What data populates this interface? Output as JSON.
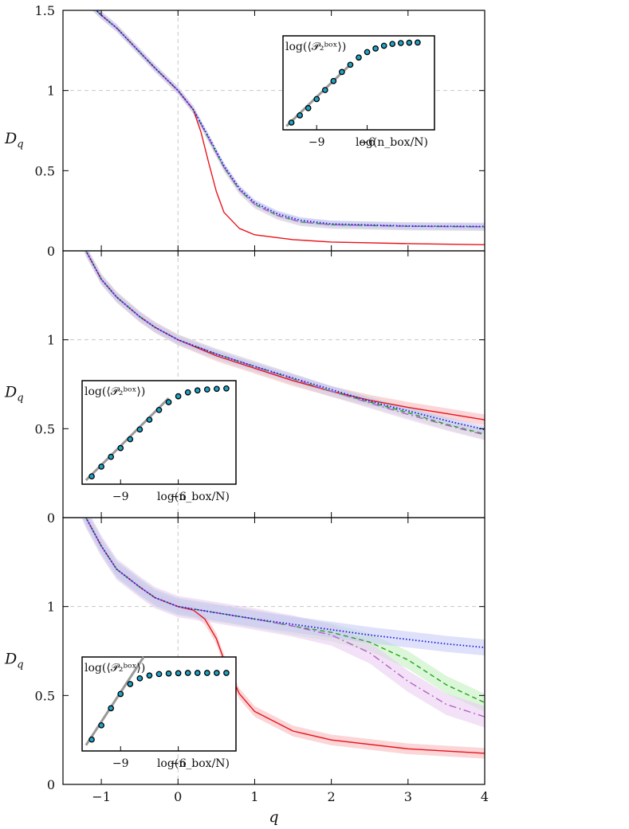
{
  "chart_data": {
    "type": "line",
    "xlabel": "q",
    "ylabel": "D_q",
    "xlim": [
      -1.5,
      4
    ],
    "x_ticks": [
      "−1",
      "0",
      "1",
      "2",
      "3",
      "4"
    ],
    "grid": "dashed reference lines at q = 0 and D_q = 1",
    "series_styles": [
      {
        "id": "red",
        "color": "#e8141b",
        "style": "solid",
        "band": "#f7b3b6"
      },
      {
        "id": "green",
        "color": "#1fa818",
        "style": "dashed",
        "band": "#bfeeb9"
      },
      {
        "id": "violet",
        "color": "#b860c8",
        "style": "dash-dot",
        "band": "#e8c8f0"
      },
      {
        "id": "blue",
        "color": "#1a1adf",
        "style": "dotted",
        "band": "#c4c8f7"
      }
    ],
    "panels": [
      {
        "name": "top",
        "ylim": [
          0,
          1.5
        ],
        "y_ticks": [
          {
            "v": 0,
            "label": "0"
          },
          {
            "v": 0.5,
            "label": "0.5"
          },
          {
            "v": 1,
            "label": "1"
          },
          {
            "v": 1.5,
            "label": "1.5"
          }
        ],
        "series": [
          {
            "id": "red",
            "x": [
              -1.5,
              -1.2,
              -1,
              -0.8,
              -0.5,
              -0.3,
              0,
              0.2,
              0.3,
              0.4,
              0.5,
              0.6,
              0.8,
              1,
              1.5,
              2,
              3,
              4
            ],
            "y": [
              1.78,
              1.56,
              1.47,
              1.39,
              1.24,
              1.14,
              1.0,
              0.88,
              0.74,
              0.55,
              0.37,
              0.24,
              0.14,
              0.1,
              0.07,
              0.055,
              0.045,
              0.038
            ],
            "band": 0
          },
          {
            "id": "green",
            "x": [
              -1.5,
              -1.2,
              -1,
              -0.8,
              -0.5,
              -0.3,
              0,
              0.2,
              0.4,
              0.6,
              0.8,
              1,
              1.3,
              1.6,
              2,
              3,
              4
            ],
            "y": [
              1.78,
              1.56,
              1.47,
              1.39,
              1.24,
              1.14,
              1.0,
              0.88,
              0.7,
              0.52,
              0.38,
              0.29,
              0.22,
              0.18,
              0.163,
              0.153,
              0.15
            ],
            "band": 0.025
          },
          {
            "id": "violet",
            "x": [
              -1.5,
              -1.2,
              -1,
              -0.8,
              -0.5,
              -0.3,
              0,
              0.2,
              0.4,
              0.6,
              0.8,
              1,
              1.3,
              1.6,
              2,
              3,
              4
            ],
            "y": [
              1.78,
              1.56,
              1.47,
              1.39,
              1.24,
              1.14,
              1.0,
              0.88,
              0.7,
              0.52,
              0.38,
              0.29,
              0.22,
              0.18,
              0.163,
              0.153,
              0.15
            ],
            "band": 0.025
          },
          {
            "id": "blue",
            "x": [
              -1.5,
              -1.2,
              -1,
              -0.8,
              -0.5,
              -0.3,
              0,
              0.2,
              0.4,
              0.6,
              0.8,
              1,
              1.3,
              1.6,
              2,
              3,
              4
            ],
            "y": [
              1.78,
              1.56,
              1.47,
              1.39,
              1.24,
              1.14,
              1.0,
              0.88,
              0.71,
              0.53,
              0.39,
              0.3,
              0.23,
              0.19,
              0.168,
              0.155,
              0.152
            ],
            "band": 0.02
          }
        ],
        "inset": {
          "position": "top-right",
          "ylabel": "log(⟨𝒫₂ᵇᵒˣ⟩)",
          "xlabel": "log(n_box/N)",
          "x_ticks": [
            "−9",
            "−6"
          ],
          "x": [
            -10.5,
            -10,
            -9.5,
            -9,
            -8.5,
            -8,
            -7.5,
            -7,
            -6.5,
            -6,
            -5.5,
            -5,
            -4.5,
            -4,
            -3.5,
            -3
          ],
          "y": [
            -8.8,
            -8.4,
            -8.0,
            -7.5,
            -7.0,
            -6.5,
            -6.0,
            -5.6,
            -5.2,
            -4.9,
            -4.7,
            -4.55,
            -4.45,
            -4.4,
            -4.38,
            -4.37
          ],
          "fit_line": [
            {
              "x": -10.8,
              "y": -9.0
            },
            {
              "x": -6.9,
              "y": -5.5
            }
          ]
        }
      },
      {
        "name": "middle",
        "ylim": [
          0,
          1.5
        ],
        "y_ticks": [
          {
            "v": 0,
            "label": "0"
          },
          {
            "v": 0.5,
            "label": "0.5"
          },
          {
            "v": 1,
            "label": "1"
          }
        ],
        "series": [
          {
            "id": "red",
            "x": [
              -1.5,
              -1.2,
              -1.1,
              -1,
              -0.8,
              -0.5,
              -0.3,
              0,
              0.5,
              1,
              1.5,
              2,
              2.5,
              3,
              3.5,
              4
            ],
            "y": [
              1.8,
              1.5,
              1.42,
              1.34,
              1.24,
              1.13,
              1.07,
              1.0,
              0.91,
              0.84,
              0.77,
              0.71,
              0.66,
              0.62,
              0.585,
              0.55
            ],
            "band": 0.03
          },
          {
            "id": "green",
            "x": [
              -1.5,
              -1.2,
              -1.1,
              -1,
              -0.8,
              -0.5,
              -0.3,
              0,
              0.5,
              1,
              1.5,
              2,
              2.5,
              3,
              3.5,
              4
            ],
            "y": [
              1.8,
              1.5,
              1.42,
              1.34,
              1.24,
              1.13,
              1.07,
              1.0,
              0.92,
              0.85,
              0.78,
              0.71,
              0.65,
              0.59,
              0.525,
              0.47
            ],
            "band": 0.03
          },
          {
            "id": "violet",
            "x": [
              -1.5,
              -1.2,
              -1.1,
              -1,
              -0.8,
              -0.5,
              -0.3,
              0,
              0.5,
              1,
              1.5,
              2,
              2.5,
              3,
              3.5,
              4
            ],
            "y": [
              1.8,
              1.5,
              1.42,
              1.34,
              1.24,
              1.13,
              1.07,
              1.0,
              0.92,
              0.85,
              0.78,
              0.71,
              0.645,
              0.58,
              0.52,
              0.465
            ],
            "band": 0.03
          },
          {
            "id": "blue",
            "x": [
              -1.5,
              -1.2,
              -1.1,
              -1,
              -0.8,
              -0.5,
              -0.3,
              0,
              0.5,
              1,
              1.5,
              2,
              2.5,
              3,
              3.5,
              4
            ],
            "y": [
              1.8,
              1.5,
              1.42,
              1.34,
              1.24,
              1.13,
              1.07,
              1.0,
              0.92,
              0.85,
              0.785,
              0.72,
              0.655,
              0.6,
              0.545,
              0.495
            ],
            "band": 0.02
          }
        ],
        "inset": {
          "position": "bottom-left",
          "ylabel": "log(⟨𝒫₂ᵇᵒˣ⟩)",
          "xlabel": "log(n_box/N)",
          "x_ticks": [
            "−9",
            "−6"
          ],
          "x": [
            -10.5,
            -10,
            -9.5,
            -9,
            -8.5,
            -8,
            -7.5,
            -7,
            -6.5,
            -6,
            -5.5,
            -5,
            -4.5,
            -4,
            -3.5
          ],
          "y": [
            -8.9,
            -8.4,
            -7.9,
            -7.45,
            -7.0,
            -6.5,
            -6.0,
            -5.5,
            -5.1,
            -4.8,
            -4.6,
            -4.5,
            -4.45,
            -4.42,
            -4.4
          ],
          "fit_line": [
            {
              "x": -10.8,
              "y": -9.1
            },
            {
              "x": -6.5,
              "y": -4.9
            }
          ]
        }
      },
      {
        "name": "bottom",
        "ylim": [
          0,
          1.5
        ],
        "y_ticks": [
          {
            "v": 0,
            "label": "0"
          },
          {
            "v": 0.5,
            "label": "0.5"
          },
          {
            "v": 1,
            "label": "1"
          }
        ],
        "series": [
          {
            "id": "red",
            "x": [
              -1.5,
              -1.2,
              -1.1,
              -1,
              -0.8,
              -0.5,
              -0.3,
              0,
              0.2,
              0.35,
              0.5,
              0.6,
              0.8,
              1,
              1.5,
              2,
              3,
              4
            ],
            "y": [
              1.8,
              1.5,
              1.42,
              1.34,
              1.21,
              1.11,
              1.05,
              1.0,
              0.98,
              0.93,
              0.82,
              0.7,
              0.51,
              0.41,
              0.3,
              0.25,
              0.2,
              0.175
            ],
            "band": 0.03
          },
          {
            "id": "green",
            "x": [
              -1.5,
              -1.2,
              -1.1,
              -1,
              -0.8,
              -0.5,
              -0.3,
              0,
              0.5,
              1,
              1.5,
              2,
              2.5,
              3,
              3.5,
              4
            ],
            "y": [
              1.8,
              1.5,
              1.42,
              1.34,
              1.21,
              1.11,
              1.05,
              1.0,
              0.965,
              0.93,
              0.89,
              0.855,
              0.8,
              0.7,
              0.56,
              0.46
            ],
            "band": 0.05
          },
          {
            "id": "violet",
            "x": [
              -1.5,
              -1.2,
              -1.1,
              -1,
              -0.8,
              -0.5,
              -0.3,
              0,
              0.5,
              1,
              1.5,
              2,
              2.5,
              3,
              3.5,
              4
            ],
            "y": [
              1.8,
              1.5,
              1.42,
              1.34,
              1.21,
              1.11,
              1.05,
              1.0,
              0.965,
              0.93,
              0.89,
              0.84,
              0.74,
              0.58,
              0.45,
              0.38
            ],
            "band": 0.06
          },
          {
            "id": "blue",
            "x": [
              -1.5,
              -1.2,
              -1.1,
              -1,
              -0.8,
              -0.5,
              -0.3,
              0,
              0.5,
              1,
              1.5,
              2,
              2.5,
              3,
              3.5,
              4
            ],
            "y": [
              1.8,
              1.5,
              1.42,
              1.34,
              1.21,
              1.11,
              1.05,
              1.0,
              0.965,
              0.93,
              0.9,
              0.87,
              0.84,
              0.815,
              0.79,
              0.77
            ],
            "band": 0.045
          }
        ],
        "inset": {
          "position": "bottom-left",
          "ylabel": "log(⟨𝒫₂ᵇᵒˣ⟩)",
          "xlabel": "log(n_box/N)",
          "x_ticks": [
            "−9",
            "−6"
          ],
          "x": [
            -10.5,
            -10,
            -9.5,
            -9,
            -8.5,
            -8,
            -7.5,
            -7,
            -6.5,
            -6,
            -5.5,
            -5,
            -4.5,
            -4,
            -3.5
          ],
          "y": [
            -9.5,
            -9.0,
            -8.4,
            -7.9,
            -7.55,
            -7.35,
            -7.25,
            -7.2,
            -7.18,
            -7.17,
            -7.16,
            -7.16,
            -7.16,
            -7.16,
            -7.16
          ],
          "fit_line": [
            {
              "x": -10.8,
              "y": -9.7
            },
            {
              "x": -7.8,
              "y": -6.6
            }
          ]
        }
      }
    ]
  }
}
